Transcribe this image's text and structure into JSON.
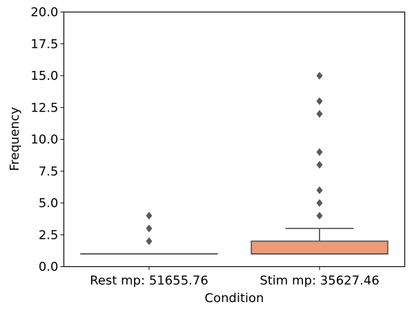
{
  "chart_data": {
    "type": "box",
    "xlabel": "Condition",
    "ylabel": "Frequency",
    "ylim": [
      0,
      20
    ],
    "yticks": [
      0.0,
      2.5,
      5.0,
      7.5,
      10.0,
      12.5,
      15.0,
      17.5,
      20.0
    ],
    "ytick_labels": [
      "0.0",
      "2.5",
      "5.0",
      "7.5",
      "10.0",
      "12.5",
      "15.0",
      "17.5",
      "20.0"
    ],
    "grid": false,
    "legend": "none",
    "categories": [
      "Rest mp: 51655.76",
      "Stim mp: 35627.46"
    ],
    "boxes": [
      {
        "category": "Rest mp: 51655.76",
        "whisker_low": 1,
        "q1": 1,
        "median": 1,
        "q3": 1,
        "whisker_high": 1,
        "outliers": [
          2,
          3,
          4
        ],
        "color": "#66c2a5"
      },
      {
        "category": "Stim mp: 35627.46",
        "whisker_low": 1,
        "q1": 1,
        "median": 1,
        "q3": 2,
        "whisker_high": 3,
        "outliers": [
          4,
          5,
          6,
          8,
          9,
          12,
          13,
          15
        ],
        "color": "#ee9a75"
      }
    ],
    "line_color": "#595959"
  }
}
